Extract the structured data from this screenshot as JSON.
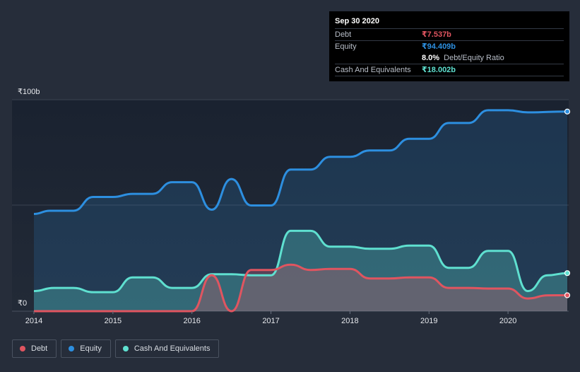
{
  "chart_data": {
    "type": "area",
    "ylabel_top": "₹100b",
    "ylabel_bottom": "₹0",
    "ylim": [
      0,
      100
    ],
    "xlim": [
      2014.0,
      2020.75
    ],
    "x_ticks": [
      "2014",
      "2015",
      "2016",
      "2017",
      "2018",
      "2019",
      "2020"
    ],
    "series": [
      {
        "name": "Equity",
        "color": "#2d8fe0",
        "points": [
          [
            2014.0,
            46
          ],
          [
            2014.2,
            47.5
          ],
          [
            2014.5,
            47.5
          ],
          [
            2014.75,
            54
          ],
          [
            2015.0,
            54
          ],
          [
            2015.25,
            55.5
          ],
          [
            2015.5,
            55.5
          ],
          [
            2015.75,
            61
          ],
          [
            2016.0,
            61
          ],
          [
            2016.25,
            48
          ],
          [
            2016.5,
            62.5
          ],
          [
            2016.75,
            50
          ],
          [
            2017.0,
            50
          ],
          [
            2017.25,
            67
          ],
          [
            2017.5,
            67
          ],
          [
            2017.75,
            73
          ],
          [
            2018.0,
            73
          ],
          [
            2018.25,
            76
          ],
          [
            2018.5,
            76
          ],
          [
            2018.75,
            81.5
          ],
          [
            2019.0,
            81.5
          ],
          [
            2019.25,
            89
          ],
          [
            2019.5,
            89
          ],
          [
            2019.75,
            95
          ],
          [
            2020.0,
            95
          ],
          [
            2020.25,
            94
          ],
          [
            2020.75,
            94.409
          ]
        ]
      },
      {
        "name": "Cash And Equivalents",
        "color": "#5fe0d0",
        "points": [
          [
            2014.0,
            9.5
          ],
          [
            2014.25,
            11
          ],
          [
            2014.5,
            11
          ],
          [
            2014.75,
            9
          ],
          [
            2015.0,
            9
          ],
          [
            2015.25,
            16
          ],
          [
            2015.5,
            16
          ],
          [
            2015.75,
            11
          ],
          [
            2016.0,
            11
          ],
          [
            2016.25,
            17.5
          ],
          [
            2016.5,
            17.5
          ],
          [
            2016.75,
            17
          ],
          [
            2017.0,
            17
          ],
          [
            2017.25,
            38
          ],
          [
            2017.5,
            38
          ],
          [
            2017.75,
            30.5
          ],
          [
            2018.0,
            30.5
          ],
          [
            2018.25,
            29.5
          ],
          [
            2018.5,
            29.5
          ],
          [
            2018.75,
            31
          ],
          [
            2019.0,
            31
          ],
          [
            2019.25,
            20.5
          ],
          [
            2019.5,
            20.5
          ],
          [
            2019.75,
            28.5
          ],
          [
            2020.0,
            28.5
          ],
          [
            2020.25,
            9.5
          ],
          [
            2020.5,
            17
          ],
          [
            2020.75,
            18.002
          ]
        ]
      },
      {
        "name": "Debt",
        "color": "#e05560",
        "points": [
          [
            2014.0,
            0
          ],
          [
            2016.0,
            0
          ],
          [
            2016.25,
            17
          ],
          [
            2016.5,
            0
          ],
          [
            2016.75,
            19.5
          ],
          [
            2017.0,
            19.5
          ],
          [
            2017.25,
            22
          ],
          [
            2017.5,
            19.5
          ],
          [
            2017.75,
            20
          ],
          [
            2018.0,
            20
          ],
          [
            2018.25,
            15.5
          ],
          [
            2018.5,
            15.5
          ],
          [
            2018.75,
            16
          ],
          [
            2019.0,
            16
          ],
          [
            2019.25,
            11
          ],
          [
            2019.5,
            11
          ],
          [
            2019.75,
            10.7
          ],
          [
            2020.0,
            10.7
          ],
          [
            2020.25,
            6
          ],
          [
            2020.5,
            7.5
          ],
          [
            2020.75,
            7.537
          ]
        ]
      }
    ]
  },
  "tooltip": {
    "date": "Sep 30 2020",
    "debt_label": "Debt",
    "debt_value": "₹7.537b",
    "equity_label": "Equity",
    "equity_value": "₹94.409b",
    "ratio_value": "8.0%",
    "ratio_label": "Debt/Equity Ratio",
    "cash_label": "Cash And Equivalents",
    "cash_value": "₹18.002b",
    "debt_color": "#e05560",
    "equity_color": "#2d8fe0",
    "cash_color": "#5fe0d0"
  },
  "legend": {
    "items": [
      {
        "label": "Debt",
        "color": "#e05560"
      },
      {
        "label": "Equity",
        "color": "#2d8fe0"
      },
      {
        "label": "Cash And Equivalents",
        "color": "#5fe0d0"
      }
    ]
  }
}
